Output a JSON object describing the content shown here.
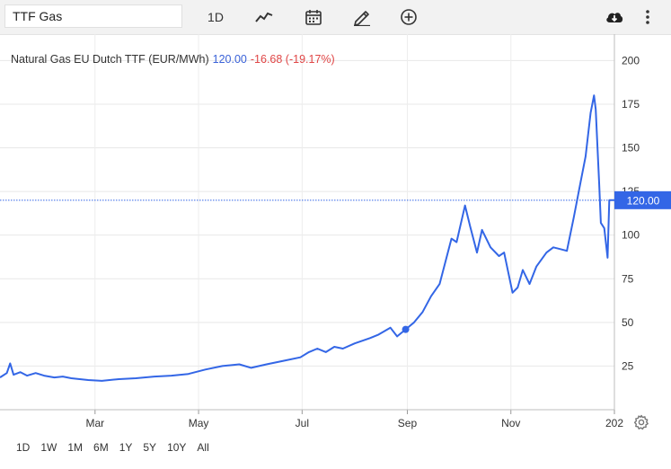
{
  "toolbar": {
    "symbol_value": "TTF Gas",
    "interval_label": "1D",
    "icons": [
      "line-chart-icon",
      "calendar-icon",
      "pencil-icon",
      "plus-circle-icon",
      "cloud-download-icon",
      "more-vertical-icon"
    ]
  },
  "header": {
    "instrument": "Natural Gas EU Dutch TTF (EUR/MWh)",
    "last": "120.00",
    "change": "-16.68 (-19.17%)"
  },
  "price_tag": "120.00",
  "ranges": [
    "1D",
    "1W",
    "1M",
    "6M",
    "1Y",
    "5Y",
    "10Y",
    "All"
  ],
  "colors": {
    "line": "#3366e6",
    "last_tag": "#3366e6",
    "change": "#e04646"
  },
  "chart_data": {
    "type": "line",
    "title": "",
    "xlabel": "",
    "ylabel": "",
    "y_ticks": [
      25,
      50,
      75,
      100,
      125,
      150,
      175,
      200
    ],
    "ylim": [
      0,
      211
    ],
    "x_ticks": [
      {
        "label": "Mar",
        "x": "2021-03-01"
      },
      {
        "label": "May",
        "x": "2021-05-01"
      },
      {
        "label": "Jul",
        "x": "2021-07-01"
      },
      {
        "label": "Sep",
        "x": "2021-09-01"
      },
      {
        "label": "Nov",
        "x": "2021-11-01"
      },
      {
        "label": "202",
        "x": "2022-01-01"
      }
    ],
    "xlim": [
      "2021-01-04",
      "2022-01-01"
    ],
    "last_value": 120.0,
    "grid": true,
    "series": [
      {
        "name": "",
        "points": [
          [
            "2021-01-04",
            18.5
          ],
          [
            "2021-01-08",
            21
          ],
          [
            "2021-01-10",
            26.5
          ],
          [
            "2021-01-12",
            20
          ],
          [
            "2021-01-16",
            21.5
          ],
          [
            "2021-01-20",
            19.5
          ],
          [
            "2021-01-25",
            21
          ],
          [
            "2021-01-30",
            19.5
          ],
          [
            "2021-02-05",
            18.5
          ],
          [
            "2021-02-10",
            19
          ],
          [
            "2021-02-15",
            18
          ],
          [
            "2021-02-20",
            17.5
          ],
          [
            "2021-02-25",
            17
          ],
          [
            "2021-03-05",
            16.5
          ],
          [
            "2021-03-15",
            17.5
          ],
          [
            "2021-03-25",
            18
          ],
          [
            "2021-04-05",
            19
          ],
          [
            "2021-04-15",
            19.5
          ],
          [
            "2021-04-25",
            20.5
          ],
          [
            "2021-05-05",
            23
          ],
          [
            "2021-05-15",
            25
          ],
          [
            "2021-05-25",
            26
          ],
          [
            "2021-06-01",
            24
          ],
          [
            "2021-06-10",
            26
          ],
          [
            "2021-06-20",
            28
          ],
          [
            "2021-06-30",
            30
          ],
          [
            "2021-07-05",
            33
          ],
          [
            "2021-07-10",
            35
          ],
          [
            "2021-07-15",
            33
          ],
          [
            "2021-07-20",
            36
          ],
          [
            "2021-07-25",
            35
          ],
          [
            "2021-08-01",
            38
          ],
          [
            "2021-08-10",
            41
          ],
          [
            "2021-08-15",
            43
          ],
          [
            "2021-08-22",
            47
          ],
          [
            "2021-08-26",
            42
          ],
          [
            "2021-08-31",
            46
          ],
          [
            "2021-09-05",
            50
          ],
          [
            "2021-09-10",
            56
          ],
          [
            "2021-09-15",
            65
          ],
          [
            "2021-09-20",
            72
          ],
          [
            "2021-09-27",
            98
          ],
          [
            "2021-09-30",
            96
          ],
          [
            "2021-10-05",
            117
          ],
          [
            "2021-10-08",
            105
          ],
          [
            "2021-10-12",
            90
          ],
          [
            "2021-10-15",
            103
          ],
          [
            "2021-10-20",
            93
          ],
          [
            "2021-10-25",
            88
          ],
          [
            "2021-10-28",
            90
          ],
          [
            "2021-11-02",
            67
          ],
          [
            "2021-11-05",
            70
          ],
          [
            "2021-11-08",
            80
          ],
          [
            "2021-11-12",
            72
          ],
          [
            "2021-11-16",
            82
          ],
          [
            "2021-11-22",
            90
          ],
          [
            "2021-11-26",
            93
          ],
          [
            "2021-11-30",
            92
          ],
          [
            "2021-12-04",
            91
          ],
          [
            "2021-12-08",
            110
          ],
          [
            "2021-12-12",
            130
          ],
          [
            "2021-12-15",
            145
          ],
          [
            "2021-12-18",
            170
          ],
          [
            "2021-12-20",
            180
          ],
          [
            "2021-12-21",
            172
          ],
          [
            "2021-12-23",
            130
          ],
          [
            "2021-12-24",
            107
          ],
          [
            "2021-12-26",
            104
          ],
          [
            "2021-12-28",
            87
          ],
          [
            "2021-12-29",
            120
          ],
          [
            "2022-01-01",
            120
          ]
        ]
      }
    ],
    "marker": {
      "x": "2021-08-31",
      "y": 46
    }
  }
}
